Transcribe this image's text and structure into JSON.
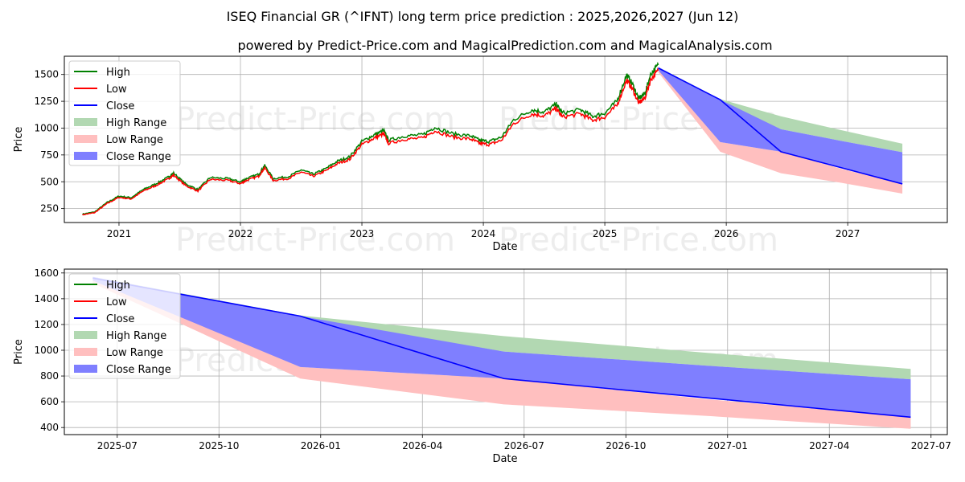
{
  "title": "ISEQ Financial GR (^IFNT) long term price prediction : 2025,2026,2027 (Jun 12)",
  "subtitle": "powered by Predict-Price.com and MagicalPrediction.com and MagicalAnalysis.com",
  "watermark": "Predict-Price.com",
  "colors": {
    "high": "#008000",
    "low": "#ff0000",
    "close": "#0000ff",
    "high_range": "#b2d8b2",
    "low_range": "#ffbfbf",
    "close_range": "#7f7fff"
  },
  "legend": [
    "High",
    "Low",
    "Close",
    "High Range",
    "Low Range",
    "Close Range"
  ],
  "chart_data": [
    {
      "type": "line",
      "name": "long-term",
      "xlabel": "Date",
      "ylabel": "Price",
      "xlim": [
        2020.55,
        2027.82
      ],
      "ylim": [
        120,
        1670
      ],
      "xticks": [
        2021,
        2022,
        2023,
        2024,
        2025,
        2026,
        2027
      ],
      "xtick_labels": [
        "2021",
        "2022",
        "2023",
        "2024",
        "2025",
        "2026",
        "2027"
      ],
      "yticks": [
        250,
        500,
        750,
        1000,
        1250,
        1500
      ],
      "history_close": [
        [
          2020.7,
          195
        ],
        [
          2020.8,
          215
        ],
        [
          2020.9,
          300
        ],
        [
          2021.0,
          360
        ],
        [
          2021.1,
          345
        ],
        [
          2021.2,
          420
        ],
        [
          2021.3,
          470
        ],
        [
          2021.4,
          530
        ],
        [
          2021.45,
          570
        ],
        [
          2021.55,
          470
        ],
        [
          2021.65,
          420
        ],
        [
          2021.75,
          530
        ],
        [
          2021.9,
          520
        ],
        [
          2022.0,
          490
        ],
        [
          2022.05,
          520
        ],
        [
          2022.15,
          560
        ],
        [
          2022.2,
          640
        ],
        [
          2022.27,
          520
        ],
        [
          2022.4,
          540
        ],
        [
          2022.5,
          600
        ],
        [
          2022.6,
          560
        ],
        [
          2022.7,
          610
        ],
        [
          2022.8,
          680
        ],
        [
          2022.9,
          720
        ],
        [
          2023.0,
          860
        ],
        [
          2023.1,
          920
        ],
        [
          2023.18,
          960
        ],
        [
          2023.22,
          870
        ],
        [
          2023.35,
          910
        ],
        [
          2023.5,
          920
        ],
        [
          2023.6,
          990
        ],
        [
          2023.75,
          930
        ],
        [
          2023.9,
          910
        ],
        [
          2023.97,
          870
        ],
        [
          2024.05,
          860
        ],
        [
          2024.15,
          900
        ],
        [
          2024.25,
          1060
        ],
        [
          2024.4,
          1150
        ],
        [
          2024.5,
          1130
        ],
        [
          2024.6,
          1200
        ],
        [
          2024.65,
          1120
        ],
        [
          2024.8,
          1150
        ],
        [
          2024.9,
          1090
        ],
        [
          2025.0,
          1120
        ],
        [
          2025.1,
          1230
        ],
        [
          2025.18,
          1470
        ],
        [
          2025.23,
          1380
        ],
        [
          2025.28,
          1250
        ],
        [
          2025.33,
          1300
        ],
        [
          2025.38,
          1480
        ],
        [
          2025.44,
          1560
        ]
      ],
      "forecast_dates": [
        2025.44,
        2025.95,
        2026.45,
        2026.95,
        2027.45
      ],
      "forecast_close": [
        1560,
        1265,
        780,
        630,
        480
      ],
      "high_range": [
        [
          1570,
          1560
        ],
        [
          1270,
          1250
        ],
        [
          1110,
          990
        ],
        [
          980,
          880
        ],
        [
          855,
          775
        ]
      ],
      "low_range": [
        [
          1560,
          1520
        ],
        [
          870,
          780
        ],
        [
          780,
          580
        ],
        [
          620,
          490
        ],
        [
          480,
          390
        ]
      ],
      "close_range": [
        [
          1570,
          1540
        ],
        [
          1265,
          870
        ],
        [
          990,
          780
        ],
        [
          880,
          630
        ],
        [
          775,
          480
        ]
      ]
    },
    {
      "type": "line",
      "name": "forecast-zoom",
      "xlabel": "Date",
      "ylabel": "Price",
      "xlim": [
        2025.37,
        2027.54
      ],
      "ylim": [
        345,
        1630
      ],
      "xticks": [
        2025.5,
        2025.75,
        2026.0,
        2026.25,
        2026.5,
        2026.75,
        2027.0,
        2027.25,
        2027.5
      ],
      "xtick_labels": [
        "2025-07",
        "2025-10",
        "2026-01",
        "2026-04",
        "2026-07",
        "2026-10",
        "2027-01",
        "2027-04",
        "2027-07"
      ],
      "yticks": [
        400,
        600,
        800,
        1000,
        1200,
        1400,
        1600
      ],
      "forecast_dates": [
        2025.44,
        2025.95,
        2026.45,
        2026.95,
        2027.45
      ],
      "forecast_close": [
        1560,
        1265,
        780,
        630,
        480
      ],
      "high_range": [
        [
          1570,
          1560
        ],
        [
          1270,
          1250
        ],
        [
          1110,
          990
        ],
        [
          980,
          880
        ],
        [
          855,
          775
        ]
      ],
      "low_range": [
        [
          1560,
          1520
        ],
        [
          870,
          780
        ],
        [
          780,
          580
        ],
        [
          620,
          490
        ],
        [
          480,
          390
        ]
      ],
      "close_range": [
        [
          1570,
          1540
        ],
        [
          1265,
          870
        ],
        [
          990,
          780
        ],
        [
          880,
          630
        ],
        [
          775,
          480
        ]
      ]
    }
  ]
}
